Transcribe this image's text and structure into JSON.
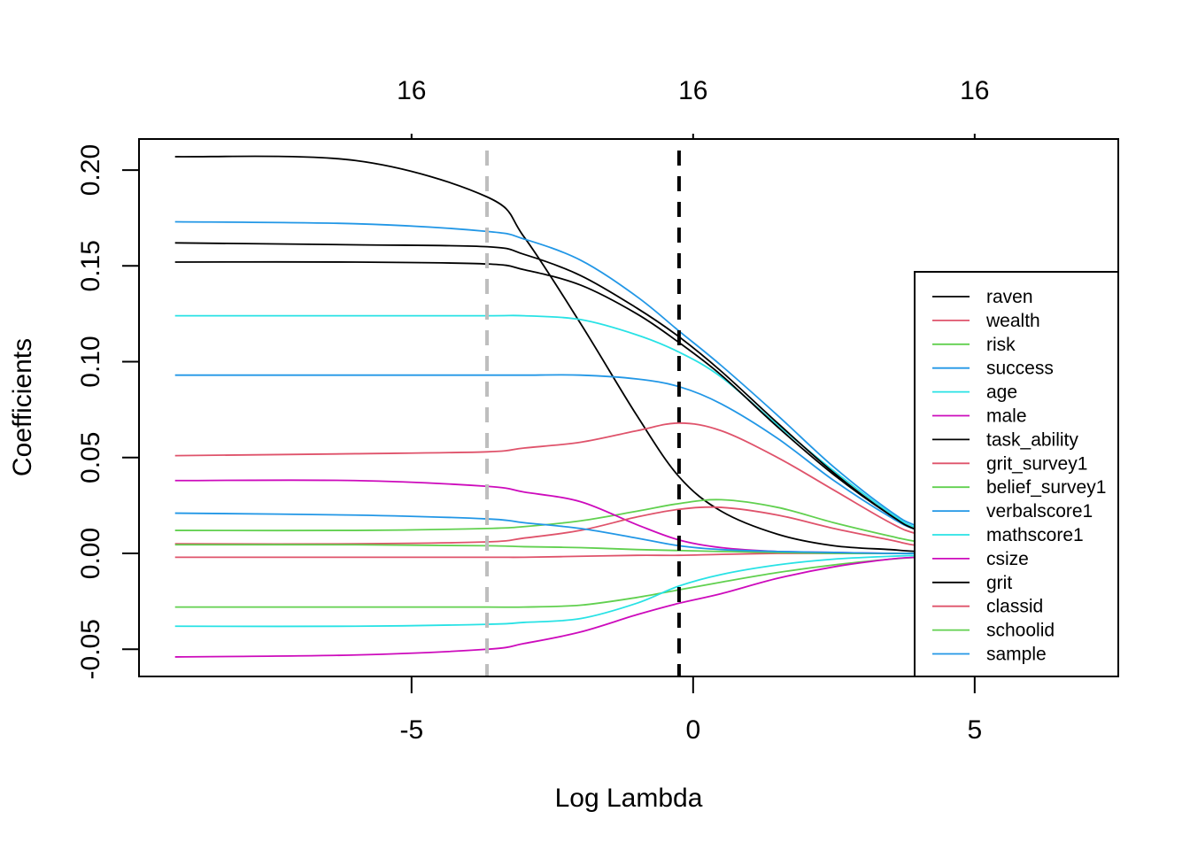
{
  "chart_data": {
    "type": "line",
    "title": "",
    "xlabel": "Log Lambda",
    "ylabel": "Coefficients",
    "xlim": [
      -9.84,
      7.55
    ],
    "ylim": [
      -0.0642,
      0.2162
    ],
    "x_ticks": [
      -5,
      0,
      5
    ],
    "x_tick_labels": [
      "-5",
      "0",
      "5"
    ],
    "y_ticks": [
      -0.05,
      0.0,
      0.05,
      0.1,
      0.15,
      0.2
    ],
    "y_tick_labels": [
      "-0.05",
      "0.00",
      "0.05",
      "0.10",
      "0.15",
      "0.20"
    ],
    "top_axis_ticks": [
      -5,
      0,
      5
    ],
    "top_axis_labels": [
      "16",
      "16",
      "16"
    ],
    "vlines": [
      {
        "x": -3.66,
        "color": "#BEBEBE",
        "style": "dashed"
      },
      {
        "x": -0.25,
        "color": "#000000",
        "style": "dashed"
      }
    ],
    "grid": false,
    "legend_position": "bottom-right",
    "x": [
      -9.2,
      -6,
      -3.66,
      -3,
      -2,
      -1,
      -0.25,
      0.5,
      1.5,
      2.5,
      3.5,
      4,
      5,
      7.3
    ],
    "series": [
      {
        "name": "raven",
        "color": "#000000",
        "values": [
          0.207,
          0.205,
          0.186,
          0.165,
          0.12,
          0.072,
          0.04,
          0.022,
          0.01,
          0.004,
          0.002,
          0.001,
          0.0005,
          0
        ]
      },
      {
        "name": "wealth",
        "color": "#DF536B",
        "values": [
          0.051,
          0.052,
          0.053,
          0.055,
          0.058,
          0.064,
          0.068,
          0.064,
          0.05,
          0.033,
          0.016,
          0.01,
          0.004,
          0
        ]
      },
      {
        "name": "risk",
        "color": "#61D04F",
        "values": [
          0.012,
          0.012,
          0.013,
          0.014,
          0.017,
          0.022,
          0.026,
          0.028,
          0.024,
          0.016,
          0.009,
          0.006,
          0.002,
          0
        ]
      },
      {
        "name": "success",
        "color": "#2297E6",
        "values": [
          0.173,
          0.172,
          0.168,
          0.164,
          0.153,
          0.134,
          0.116,
          0.098,
          0.072,
          0.045,
          0.022,
          0.014,
          0.005,
          0
        ]
      },
      {
        "name": "age",
        "color": "#28E2E5",
        "values": [
          0.124,
          0.124,
          0.124,
          0.124,
          0.122,
          0.114,
          0.105,
          0.092,
          0.067,
          0.043,
          0.021,
          0.013,
          0.005,
          0
        ]
      },
      {
        "name": "male",
        "color": "#CD0BBC",
        "values": [
          0.038,
          0.038,
          0.035,
          0.032,
          0.027,
          0.015,
          0.007,
          0.003,
          0.001,
          0.0005,
          0,
          0,
          0,
          0
        ]
      },
      {
        "name": "task_ability",
        "color": "#000000",
        "values": [
          0.162,
          0.161,
          0.16,
          0.156,
          0.145,
          0.128,
          0.113,
          0.095,
          0.068,
          0.042,
          0.02,
          0.012,
          0.004,
          0
        ]
      },
      {
        "name": "grit_survey1",
        "color": "#DF536B",
        "values": [
          0.005,
          0.005,
          0.006,
          0.008,
          0.012,
          0.019,
          0.023,
          0.024,
          0.02,
          0.013,
          0.007,
          0.004,
          0.001,
          0
        ]
      },
      {
        "name": "belief_survey1",
        "color": "#61D04F",
        "values": [
          -0.028,
          -0.028,
          -0.028,
          -0.028,
          -0.027,
          -0.023,
          -0.019,
          -0.015,
          -0.01,
          -0.006,
          -0.003,
          -0.002,
          -0.001,
          0
        ]
      },
      {
        "name": "verbalscore1",
        "color": "#2297E6",
        "values": [
          0.093,
          0.093,
          0.093,
          0.093,
          0.093,
          0.091,
          0.087,
          0.078,
          0.06,
          0.038,
          0.019,
          0.012,
          0.004,
          0
        ]
      },
      {
        "name": "mathscore1",
        "color": "#28E2E5",
        "values": [
          -0.038,
          -0.038,
          -0.037,
          -0.036,
          -0.034,
          -0.026,
          -0.017,
          -0.011,
          -0.006,
          -0.003,
          -0.0015,
          -0.001,
          0,
          0
        ]
      },
      {
        "name": "csize",
        "color": "#CD0BBC",
        "values": [
          -0.054,
          -0.053,
          -0.05,
          -0.047,
          -0.041,
          -0.032,
          -0.026,
          -0.021,
          -0.013,
          -0.007,
          -0.003,
          -0.002,
          -0.001,
          0
        ]
      },
      {
        "name": "grit",
        "color": "#000000",
        "values": [
          0.152,
          0.152,
          0.151,
          0.148,
          0.14,
          0.125,
          0.11,
          0.093,
          0.066,
          0.041,
          0.02,
          0.012,
          0.004,
          0
        ]
      },
      {
        "name": "classid",
        "color": "#DF536B",
        "values": [
          -0.002,
          -0.002,
          -0.002,
          -0.002,
          -0.0015,
          -0.001,
          -0.001,
          -0.0005,
          0,
          0,
          0,
          0,
          0,
          0
        ]
      },
      {
        "name": "schoolid",
        "color": "#61D04F",
        "values": [
          0.0045,
          0.0045,
          0.004,
          0.0035,
          0.003,
          0.002,
          0.0015,
          0.001,
          0.0005,
          0,
          0,
          0,
          0,
          0
        ]
      },
      {
        "name": "sample",
        "color": "#2297E6",
        "values": [
          0.021,
          0.02,
          0.018,
          0.016,
          0.013,
          0.008,
          0.004,
          0.002,
          0.001,
          0.0005,
          0,
          0,
          0,
          0
        ]
      }
    ]
  }
}
